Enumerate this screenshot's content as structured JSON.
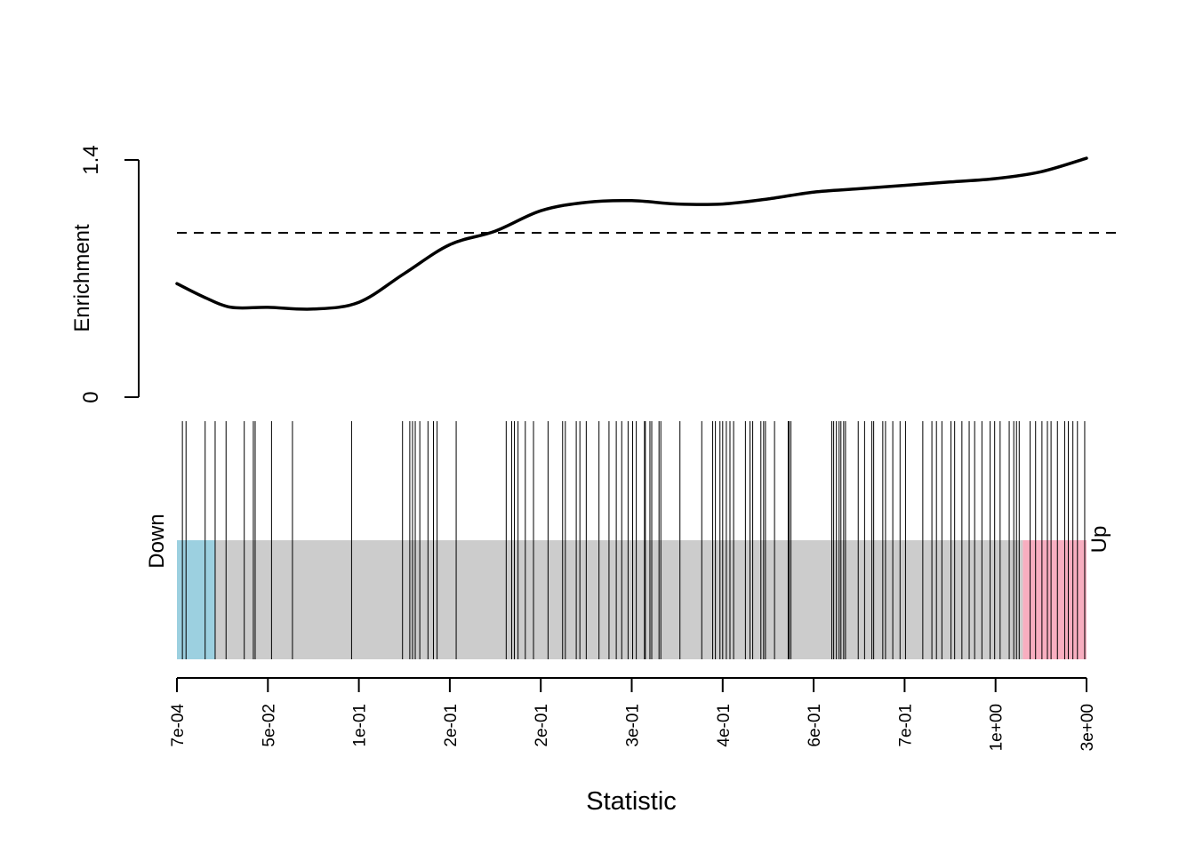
{
  "chart_data": {
    "type": "line",
    "description_type": "barcode-enrichment",
    "ylabel": "Enrichment",
    "xlabel": "Statistic",
    "ylim": [
      0,
      1.4
    ],
    "yticks": [
      0,
      1.4
    ],
    "y_tick_labels": [
      "0",
      "1.4"
    ],
    "reference_line": 0.97,
    "enrichment_curve": {
      "x": [
        0,
        0.03,
        0.06,
        0.1,
        0.15,
        0.2,
        0.25,
        0.3,
        0.35,
        0.4,
        0.45,
        0.5,
        0.55,
        0.6,
        0.65,
        0.7,
        0.75,
        0.8,
        0.85,
        0.9,
        0.95,
        1.0
      ],
      "y": [
        0.67,
        0.59,
        0.53,
        0.53,
        0.52,
        0.56,
        0.73,
        0.9,
        0.98,
        1.1,
        1.15,
        1.16,
        1.14,
        1.14,
        1.17,
        1.21,
        1.23,
        1.25,
        1.27,
        1.29,
        1.33,
        1.41
      ]
    },
    "x_tick_labels": [
      "7e-04",
      "5e-02",
      "1e-01",
      "2e-01",
      "2e-01",
      "3e-01",
      "4e-01",
      "6e-01",
      "7e-01",
      "1e+00",
      "3e+00"
    ],
    "barcode": {
      "down_label": "Down",
      "up_label": "Up",
      "down_region": [
        0,
        0.042
      ],
      "up_region": [
        0.93,
        1.0
      ],
      "colors": {
        "down": "#9cd0e0",
        "middle": "#cccccc",
        "up": "#f8aec0"
      },
      "positions": [
        0.006,
        0.01,
        0.031,
        0.042,
        0.054,
        0.074,
        0.084,
        0.086,
        0.104,
        0.127,
        0.192,
        0.248,
        0.256,
        0.259,
        0.262,
        0.267,
        0.276,
        0.282,
        0.286,
        0.307,
        0.362,
        0.368,
        0.371,
        0.375,
        0.383,
        0.392,
        0.408,
        0.424,
        0.427,
        0.439,
        0.443,
        0.45,
        0.464,
        0.475,
        0.483,
        0.489,
        0.496,
        0.501,
        0.505,
        0.514,
        0.515,
        0.52,
        0.522,
        0.53,
        0.532,
        0.553,
        0.577,
        0.589,
        0.592,
        0.597,
        0.6,
        0.604,
        0.608,
        0.612,
        0.625,
        0.63,
        0.633,
        0.642,
        0.645,
        0.647,
        0.657,
        0.672,
        0.673,
        0.675,
        0.72,
        0.722,
        0.725,
        0.728,
        0.73,
        0.733,
        0.735,
        0.749,
        0.756,
        0.764,
        0.766,
        0.776,
        0.779,
        0.787,
        0.795,
        0.801,
        0.82,
        0.83,
        0.835,
        0.841,
        0.851,
        0.855,
        0.863,
        0.871,
        0.877,
        0.885,
        0.894,
        0.899,
        0.905,
        0.915,
        0.92,
        0.923,
        0.926,
        0.938,
        0.944,
        0.951,
        0.957,
        0.961,
        0.968,
        0.976,
        0.98,
        0.985,
        0.99,
        0.998
      ]
    }
  }
}
